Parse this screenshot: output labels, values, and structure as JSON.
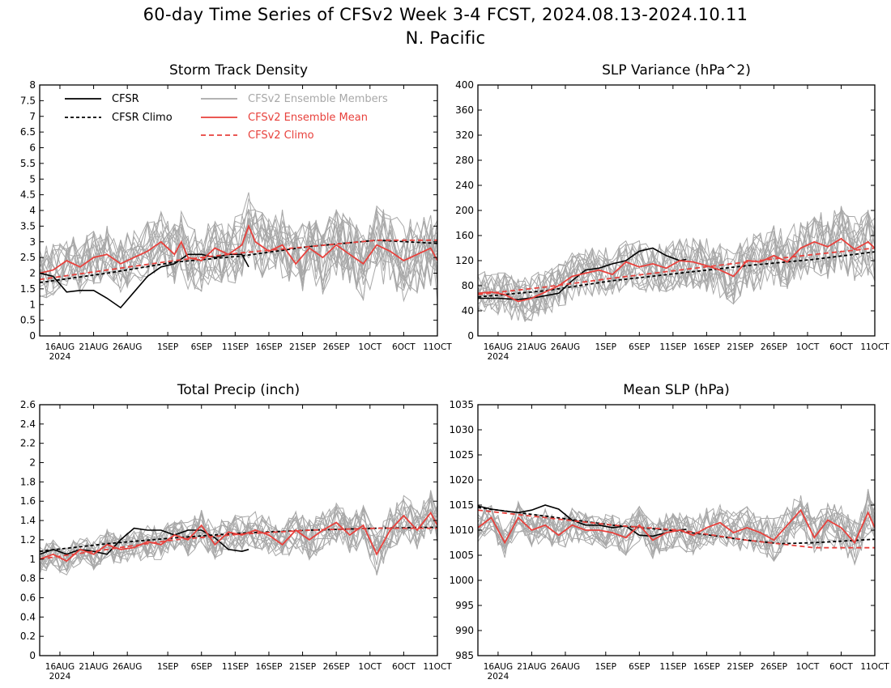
{
  "title": {
    "line1": "60-day Time Series of CFSv2 Week 3-4 FCST, 2024.08.13-2024.10.11",
    "line2": "N. Pacific"
  },
  "colors": {
    "cfsr": "#000000",
    "cfsr_climo": "#000000",
    "ensemble_members": "#a8a8a8",
    "ensemble_mean": "#e8413c",
    "cfsv2_climo": "#e8413c"
  },
  "legend": {
    "cfsr": "CFSR",
    "cfsr_climo": "CFSR Climo",
    "members": "CFSv2 Ensemble Members",
    "mean": "CFSv2 Ensemble Mean",
    "climo": "CFSv2 Climo"
  },
  "x_axis": {
    "tick_days": [
      3,
      8,
      13,
      19,
      24,
      29,
      34,
      39,
      44,
      49,
      54,
      59
    ],
    "tick_labels": [
      "16AUG",
      "21AUG",
      "26AUG",
      "1SEP",
      "6SEP",
      "11SEP",
      "16SEP",
      "21SEP",
      "26SEP",
      "1OCT",
      "6OCT",
      "11OCT"
    ],
    "year_label": "2024",
    "start_date": "2024-08-13",
    "end_date": "2024-10-11"
  },
  "chart_data": [
    {
      "type": "line",
      "title": "Storm Track Density",
      "ylim": [
        0,
        8
      ],
      "yticks": [
        "0",
        "0.5",
        "1",
        "1.5",
        "2",
        "2.5",
        "3",
        "3.5",
        "4",
        "4.5",
        "5",
        "5.5",
        "6",
        "6.5",
        "7",
        "7.5",
        "8"
      ],
      "ytick_values": [
        0,
        0.5,
        1,
        1.5,
        2,
        2.5,
        3,
        3.5,
        4,
        4.5,
        5,
        5.5,
        6,
        6.5,
        7,
        7.5,
        8
      ],
      "series": [
        {
          "name": "CFSR",
          "style": "solid-black",
          "x": [
            0,
            2,
            4,
            6,
            8,
            10,
            12,
            14,
            16,
            18,
            20,
            22,
            24,
            26,
            28,
            30,
            31
          ],
          "values": [
            2.0,
            1.9,
            1.4,
            1.45,
            1.45,
            1.2,
            0.9,
            1.4,
            1.9,
            2.2,
            2.3,
            2.6,
            2.6,
            2.5,
            2.6,
            2.6,
            2.2
          ]
        },
        {
          "name": "CFSR Climo",
          "style": "dashed-black",
          "x": [
            0,
            10,
            20,
            30,
            40,
            50,
            59
          ],
          "values": [
            1.7,
            2.0,
            2.35,
            2.55,
            2.85,
            3.05,
            2.95
          ]
        },
        {
          "name": "CFSv2 Ensemble Mean",
          "style": "solid-red",
          "x": [
            0,
            2,
            4,
            6,
            8,
            10,
            12,
            14,
            16,
            18,
            20,
            21,
            22,
            24,
            26,
            28,
            30,
            31,
            32,
            34,
            36,
            38,
            40,
            42,
            44,
            46,
            48,
            50,
            52,
            54,
            56,
            58,
            59
          ],
          "values": [
            2.0,
            2.1,
            2.4,
            2.2,
            2.5,
            2.6,
            2.3,
            2.5,
            2.7,
            3.0,
            2.6,
            3.0,
            2.5,
            2.4,
            2.8,
            2.6,
            2.9,
            3.5,
            3.0,
            2.7,
            2.9,
            2.3,
            2.8,
            2.5,
            2.9,
            2.6,
            2.3,
            2.9,
            2.7,
            2.4,
            2.6,
            2.8,
            2.4
          ]
        },
        {
          "name": "CFSv2 Climo",
          "style": "dashed-red",
          "x": [
            0,
            10,
            20,
            30,
            40,
            50,
            59
          ],
          "values": [
            1.8,
            2.1,
            2.4,
            2.65,
            2.85,
            3.05,
            3.05
          ]
        }
      ],
      "members": {
        "count": 16,
        "seed": 11,
        "amplitude": 1.1
      }
    },
    {
      "type": "line",
      "title": "SLP Variance (hPa^2)",
      "ylim": [
        0,
        400
      ],
      "yticks": [
        "0",
        "40",
        "80",
        "120",
        "160",
        "200",
        "240",
        "280",
        "320",
        "360",
        "400"
      ],
      "ytick_values": [
        0,
        40,
        80,
        120,
        160,
        200,
        240,
        280,
        320,
        360,
        400
      ],
      "series": [
        {
          "name": "CFSR",
          "style": "solid-black",
          "x": [
            0,
            3,
            6,
            9,
            12,
            14,
            16,
            18,
            20,
            22,
            24,
            26,
            28,
            30,
            31
          ],
          "values": [
            60,
            60,
            58,
            62,
            68,
            88,
            105,
            108,
            115,
            120,
            135,
            140,
            128,
            120,
            122
          ]
        },
        {
          "name": "CFSR Climo",
          "style": "dashed-black",
          "x": [
            0,
            10,
            20,
            30,
            40,
            50,
            59
          ],
          "values": [
            62,
            72,
            88,
            100,
            112,
            122,
            134
          ]
        },
        {
          "name": "CFSv2 Ensemble Mean",
          "style": "solid-red",
          "x": [
            0,
            2,
            4,
            6,
            8,
            10,
            12,
            14,
            16,
            18,
            20,
            22,
            24,
            26,
            28,
            30,
            32,
            34,
            36,
            38,
            40,
            42,
            44,
            46,
            48,
            50,
            52,
            54,
            56,
            58,
            59
          ],
          "values": [
            68,
            70,
            66,
            55,
            60,
            70,
            80,
            95,
            100,
            105,
            98,
            118,
            110,
            115,
            108,
            120,
            118,
            112,
            105,
            95,
            120,
            118,
            128,
            118,
            140,
            150,
            142,
            155,
            138,
            150,
            140
          ]
        },
        {
          "name": "CFSv2 Climo",
          "style": "dashed-red",
          "x": [
            0,
            10,
            20,
            30,
            40,
            50,
            59
          ],
          "values": [
            66,
            78,
            92,
            105,
            118,
            130,
            140
          ]
        }
      ],
      "members": {
        "count": 16,
        "seed": 23,
        "amplitude": 45
      }
    },
    {
      "type": "line",
      "title": "Total Precip (inch)",
      "ylim": [
        0,
        2.6
      ],
      "yticks": [
        "0",
        "0.2",
        "0.4",
        "0.6",
        "0.8",
        "1",
        "1.2",
        "1.4",
        "1.6",
        "1.8",
        "2",
        "2.2",
        "2.4",
        "2.6"
      ],
      "ytick_values": [
        0,
        0.2,
        0.4,
        0.6,
        0.8,
        1.0,
        1.2,
        1.4,
        1.6,
        1.8,
        2.0,
        2.2,
        2.4,
        2.6
      ],
      "series": [
        {
          "name": "CFSR",
          "style": "solid-black",
          "x": [
            0,
            2,
            4,
            6,
            8,
            10,
            12,
            14,
            16,
            18,
            20,
            22,
            24,
            26,
            28,
            30,
            31
          ],
          "values": [
            1.05,
            1.1,
            1.05,
            1.1,
            1.08,
            1.05,
            1.2,
            1.32,
            1.3,
            1.3,
            1.25,
            1.3,
            1.3,
            1.22,
            1.1,
            1.08,
            1.1
          ]
        },
        {
          "name": "CFSR Climo",
          "style": "dashed-black",
          "x": [
            0,
            10,
            20,
            30,
            40,
            50,
            59
          ],
          "values": [
            1.08,
            1.16,
            1.22,
            1.27,
            1.3,
            1.32,
            1.33
          ]
        },
        {
          "name": "CFSv2 Ensemble Mean",
          "style": "solid-red",
          "x": [
            0,
            2,
            4,
            6,
            8,
            10,
            12,
            14,
            16,
            18,
            20,
            22,
            24,
            26,
            28,
            30,
            32,
            34,
            36,
            38,
            40,
            42,
            44,
            46,
            48,
            50,
            52,
            54,
            56,
            58,
            59
          ],
          "values": [
            1.0,
            1.05,
            0.98,
            1.1,
            1.05,
            1.15,
            1.1,
            1.12,
            1.18,
            1.15,
            1.25,
            1.2,
            1.35,
            1.15,
            1.28,
            1.25,
            1.3,
            1.25,
            1.15,
            1.3,
            1.2,
            1.3,
            1.38,
            1.25,
            1.35,
            1.05,
            1.3,
            1.45,
            1.3,
            1.48,
            1.35
          ]
        },
        {
          "name": "CFSv2 Climo",
          "style": "dashed-red",
          "x": [
            0,
            10,
            20,
            30,
            40,
            50,
            59
          ],
          "values": [
            1.0,
            1.1,
            1.2,
            1.26,
            1.3,
            1.32,
            1.32
          ]
        }
      ],
      "members": {
        "count": 16,
        "seed": 37,
        "amplitude": 0.2
      }
    },
    {
      "type": "line",
      "title": "Mean SLP (hPa)",
      "ylim": [
        985,
        1035
      ],
      "yticks": [
        "985",
        "990",
        "995",
        "1000",
        "1005",
        "1010",
        "1015",
        "1020",
        "1025",
        "1030",
        "1035"
      ],
      "ytick_values": [
        985,
        990,
        995,
        1000,
        1005,
        1010,
        1015,
        1020,
        1025,
        1030,
        1035
      ],
      "series": [
        {
          "name": "CFSR",
          "style": "solid-black",
          "x": [
            0,
            2,
            4,
            6,
            8,
            10,
            12,
            14,
            16,
            18,
            20,
            22,
            24,
            26,
            28,
            30,
            31
          ],
          "values": [
            1014.8,
            1014.2,
            1013.8,
            1013.5,
            1014.0,
            1015.0,
            1014.2,
            1012.0,
            1011.0,
            1011.0,
            1010.5,
            1010.8,
            1009.0,
            1008.8,
            1009.5,
            1010.0,
            1010.2
          ]
        },
        {
          "name": "CFSR Climo",
          "style": "dashed-black",
          "x": [
            0,
            10,
            20,
            30,
            40,
            45,
            50,
            59
          ],
          "values": [
            1014.5,
            1012.8,
            1011.0,
            1009.8,
            1008.0,
            1007.3,
            1007.5,
            1008.2
          ]
        },
        {
          "name": "CFSv2 Ensemble Mean",
          "style": "solid-red",
          "x": [
            0,
            2,
            4,
            6,
            8,
            10,
            12,
            14,
            16,
            18,
            20,
            22,
            24,
            26,
            28,
            30,
            32,
            34,
            36,
            38,
            40,
            42,
            44,
            46,
            48,
            50,
            52,
            54,
            56,
            58,
            59
          ],
          "values": [
            1010.5,
            1012.5,
            1007.5,
            1012.5,
            1010.0,
            1011.0,
            1009.0,
            1011.0,
            1010.0,
            1010.0,
            1009.5,
            1008.5,
            1011.0,
            1008.0,
            1009.5,
            1010.0,
            1009.0,
            1010.5,
            1011.5,
            1009.5,
            1010.5,
            1009.5,
            1008.0,
            1011.0,
            1014.0,
            1008.5,
            1012.0,
            1010.5,
            1007.5,
            1013.5,
            1010.5
          ]
        },
        {
          "name": "CFSv2 Climo",
          "style": "dashed-red",
          "x": [
            0,
            10,
            20,
            30,
            40,
            50,
            59
          ],
          "values": [
            1014.0,
            1012.5,
            1011.0,
            1010.0,
            1008.0,
            1006.5,
            1006.5
          ]
        }
      ],
      "members": {
        "count": 16,
        "seed": 51,
        "amplitude": 4.0
      }
    }
  ]
}
